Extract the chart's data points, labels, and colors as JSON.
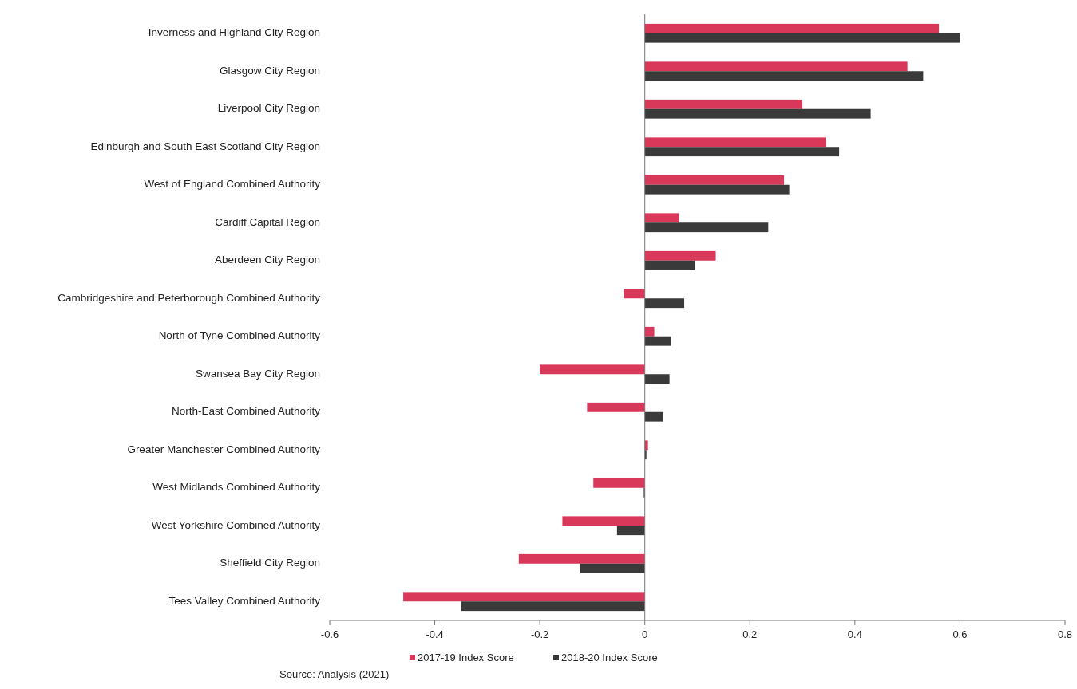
{
  "chart_data": {
    "type": "bar",
    "orientation": "horizontal",
    "categories": [
      "Inverness and Highland City Region",
      "Glasgow City Region",
      "Liverpool City Region",
      "Edinburgh and South East Scotland City Region",
      "West of England Combined Authority",
      "Cardiff Capital Region",
      "Aberdeen City Region",
      "Cambridgeshire and Peterborough Combined Authority",
      "North of Tyne Combined Authority",
      "Swansea Bay City Region",
      "North-East Combined Authority",
      "Greater Manchester Combined Authority",
      "West Midlands Combined Authority",
      "West Yorkshire Combined Authority",
      "Sheffield City Region",
      "Tees Valley Combined Authority"
    ],
    "series": [
      {
        "name": "2017-19 Index Score",
        "color": "#d9385a",
        "values": [
          0.56,
          0.5,
          0.3,
          0.345,
          0.265,
          0.065,
          0.135,
          -0.04,
          0.018,
          -0.2,
          -0.11,
          0.006,
          -0.098,
          -0.157,
          -0.24,
          -0.46
        ]
      },
      {
        "name": "2018-20 Index Score",
        "color": "#3a3a3a",
        "values": [
          0.6,
          0.53,
          0.43,
          0.37,
          0.275,
          0.235,
          0.095,
          0.075,
          0.05,
          0.047,
          0.035,
          0.003,
          -0.002,
          -0.053,
          -0.123,
          -0.35
        ]
      }
    ],
    "xlim": [
      -0.6,
      0.8
    ],
    "xticks": [
      -0.6,
      -0.4,
      -0.2,
      0,
      0.2,
      0.4,
      0.6,
      0.8
    ],
    "legend": "bottom",
    "annotations": [
      "Source: Analysis (2021)"
    ]
  }
}
